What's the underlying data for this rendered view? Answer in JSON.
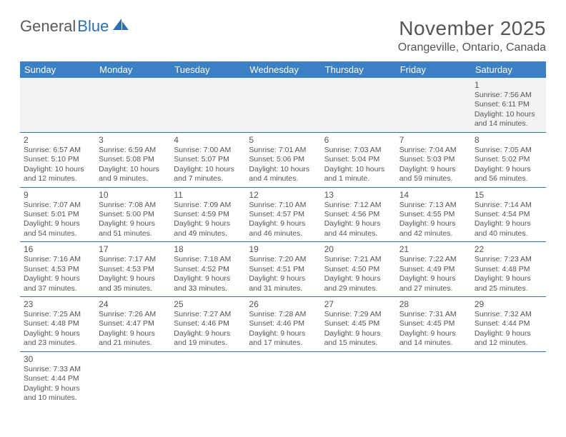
{
  "logo": {
    "text1": "General",
    "text2": "Blue"
  },
  "title": "November 2025",
  "location": "Orangeville, Ontario, Canada",
  "colors": {
    "header_bg": "#3b7fc4",
    "header_text": "#ffffff",
    "row_border": "#2f6fb0",
    "alt_row_bg": "#f2f2f2",
    "text": "#555555",
    "logo_gray": "#5a5a5a",
    "logo_blue": "#2f6fb0",
    "background": "#ffffff"
  },
  "fonts": {
    "title_size": 28,
    "location_size": 16,
    "header_size": 13,
    "daynum_size": 12,
    "body_size": 10.5
  },
  "day_headers": [
    "Sunday",
    "Monday",
    "Tuesday",
    "Wednesday",
    "Thursday",
    "Friday",
    "Saturday"
  ],
  "weeks": [
    [
      null,
      null,
      null,
      null,
      null,
      null,
      {
        "n": "1",
        "lines": [
          "Sunrise: 7:56 AM",
          "Sunset: 6:11 PM",
          "Daylight: 10 hours",
          "and 14 minutes."
        ]
      }
    ],
    [
      {
        "n": "2",
        "lines": [
          "Sunrise: 6:57 AM",
          "Sunset: 5:10 PM",
          "Daylight: 10 hours",
          "and 12 minutes."
        ]
      },
      {
        "n": "3",
        "lines": [
          "Sunrise: 6:59 AM",
          "Sunset: 5:08 PM",
          "Daylight: 10 hours",
          "and 9 minutes."
        ]
      },
      {
        "n": "4",
        "lines": [
          "Sunrise: 7:00 AM",
          "Sunset: 5:07 PM",
          "Daylight: 10 hours",
          "and 7 minutes."
        ]
      },
      {
        "n": "5",
        "lines": [
          "Sunrise: 7:01 AM",
          "Sunset: 5:06 PM",
          "Daylight: 10 hours",
          "and 4 minutes."
        ]
      },
      {
        "n": "6",
        "lines": [
          "Sunrise: 7:03 AM",
          "Sunset: 5:04 PM",
          "Daylight: 10 hours",
          "and 1 minute."
        ]
      },
      {
        "n": "7",
        "lines": [
          "Sunrise: 7:04 AM",
          "Sunset: 5:03 PM",
          "Daylight: 9 hours",
          "and 59 minutes."
        ]
      },
      {
        "n": "8",
        "lines": [
          "Sunrise: 7:05 AM",
          "Sunset: 5:02 PM",
          "Daylight: 9 hours",
          "and 56 minutes."
        ]
      }
    ],
    [
      {
        "n": "9",
        "lines": [
          "Sunrise: 7:07 AM",
          "Sunset: 5:01 PM",
          "Daylight: 9 hours",
          "and 54 minutes."
        ]
      },
      {
        "n": "10",
        "lines": [
          "Sunrise: 7:08 AM",
          "Sunset: 5:00 PM",
          "Daylight: 9 hours",
          "and 51 minutes."
        ]
      },
      {
        "n": "11",
        "lines": [
          "Sunrise: 7:09 AM",
          "Sunset: 4:59 PM",
          "Daylight: 9 hours",
          "and 49 minutes."
        ]
      },
      {
        "n": "12",
        "lines": [
          "Sunrise: 7:10 AM",
          "Sunset: 4:57 PM",
          "Daylight: 9 hours",
          "and 46 minutes."
        ]
      },
      {
        "n": "13",
        "lines": [
          "Sunrise: 7:12 AM",
          "Sunset: 4:56 PM",
          "Daylight: 9 hours",
          "and 44 minutes."
        ]
      },
      {
        "n": "14",
        "lines": [
          "Sunrise: 7:13 AM",
          "Sunset: 4:55 PM",
          "Daylight: 9 hours",
          "and 42 minutes."
        ]
      },
      {
        "n": "15",
        "lines": [
          "Sunrise: 7:14 AM",
          "Sunset: 4:54 PM",
          "Daylight: 9 hours",
          "and 40 minutes."
        ]
      }
    ],
    [
      {
        "n": "16",
        "lines": [
          "Sunrise: 7:16 AM",
          "Sunset: 4:53 PM",
          "Daylight: 9 hours",
          "and 37 minutes."
        ]
      },
      {
        "n": "17",
        "lines": [
          "Sunrise: 7:17 AM",
          "Sunset: 4:53 PM",
          "Daylight: 9 hours",
          "and 35 minutes."
        ]
      },
      {
        "n": "18",
        "lines": [
          "Sunrise: 7:18 AM",
          "Sunset: 4:52 PM",
          "Daylight: 9 hours",
          "and 33 minutes."
        ]
      },
      {
        "n": "19",
        "lines": [
          "Sunrise: 7:20 AM",
          "Sunset: 4:51 PM",
          "Daylight: 9 hours",
          "and 31 minutes."
        ]
      },
      {
        "n": "20",
        "lines": [
          "Sunrise: 7:21 AM",
          "Sunset: 4:50 PM",
          "Daylight: 9 hours",
          "and 29 minutes."
        ]
      },
      {
        "n": "21",
        "lines": [
          "Sunrise: 7:22 AM",
          "Sunset: 4:49 PM",
          "Daylight: 9 hours",
          "and 27 minutes."
        ]
      },
      {
        "n": "22",
        "lines": [
          "Sunrise: 7:23 AM",
          "Sunset: 4:48 PM",
          "Daylight: 9 hours",
          "and 25 minutes."
        ]
      }
    ],
    [
      {
        "n": "23",
        "lines": [
          "Sunrise: 7:25 AM",
          "Sunset: 4:48 PM",
          "Daylight: 9 hours",
          "and 23 minutes."
        ]
      },
      {
        "n": "24",
        "lines": [
          "Sunrise: 7:26 AM",
          "Sunset: 4:47 PM",
          "Daylight: 9 hours",
          "and 21 minutes."
        ]
      },
      {
        "n": "25",
        "lines": [
          "Sunrise: 7:27 AM",
          "Sunset: 4:46 PM",
          "Daylight: 9 hours",
          "and 19 minutes."
        ]
      },
      {
        "n": "26",
        "lines": [
          "Sunrise: 7:28 AM",
          "Sunset: 4:46 PM",
          "Daylight: 9 hours",
          "and 17 minutes."
        ]
      },
      {
        "n": "27",
        "lines": [
          "Sunrise: 7:29 AM",
          "Sunset: 4:45 PM",
          "Daylight: 9 hours",
          "and 15 minutes."
        ]
      },
      {
        "n": "28",
        "lines": [
          "Sunrise: 7:31 AM",
          "Sunset: 4:45 PM",
          "Daylight: 9 hours",
          "and 14 minutes."
        ]
      },
      {
        "n": "29",
        "lines": [
          "Sunrise: 7:32 AM",
          "Sunset: 4:44 PM",
          "Daylight: 9 hours",
          "and 12 minutes."
        ]
      }
    ],
    [
      {
        "n": "30",
        "lines": [
          "Sunrise: 7:33 AM",
          "Sunset: 4:44 PM",
          "Daylight: 9 hours",
          "and 10 minutes."
        ]
      },
      null,
      null,
      null,
      null,
      null,
      null
    ]
  ]
}
